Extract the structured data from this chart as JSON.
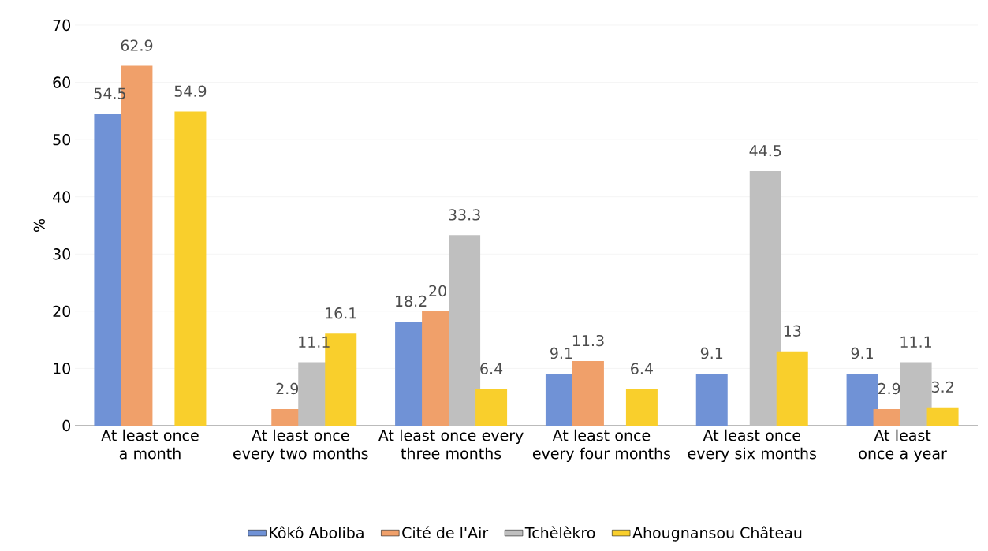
{
  "chart_data": {
    "type": "bar",
    "ylabel": "%",
    "categories": [
      "At least once a month",
      "At least once every two months",
      "At least once every three months",
      "At least once every four months",
      "At least once every six months",
      "At least once a year"
    ],
    "series": [
      {
        "name": "Kôkô Aboliba",
        "color": "#7092d6",
        "values": [
          54.5,
          null,
          18.2,
          9.1,
          9.1,
          9.1
        ]
      },
      {
        "name": "Cité de l'Air",
        "color": "#f0a06a",
        "values": [
          62.9,
          2.9,
          20,
          11.3,
          null,
          2.9
        ]
      },
      {
        "name": "Tchèlèkro",
        "color": "#bfbfbf",
        "values": [
          null,
          11.1,
          33.3,
          null,
          44.5,
          11.1
        ]
      },
      {
        "name": "Ahougnansou Château",
        "color": "#f9cf2c",
        "values": [
          54.9,
          16.1,
          6.4,
          6.4,
          13,
          3.2
        ]
      }
    ],
    "ylim": [
      0,
      70
    ],
    "yticks": [
      0,
      10,
      20,
      30,
      40,
      50,
      60,
      70
    ],
    "grid": "y",
    "legend": "bottom",
    "data_labels": true
  }
}
